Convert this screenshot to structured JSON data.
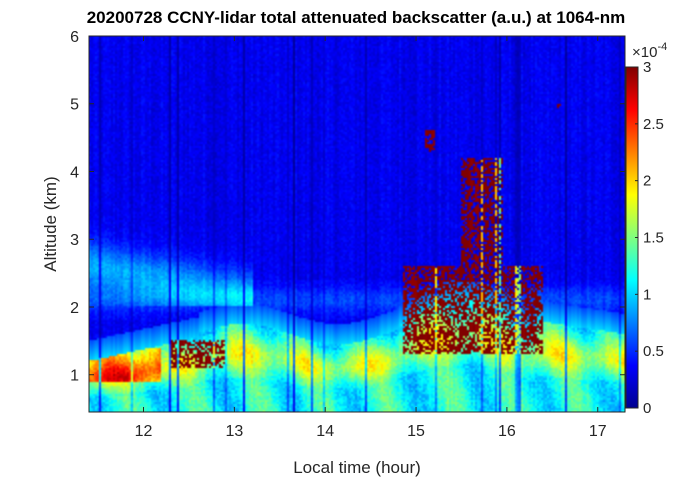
{
  "chart_data": {
    "type": "heatmap",
    "title": "20200728 CCNY-lidar total attenuated backscatter (a.u.) at 1064-nm",
    "xlabel": "Local time (hour)",
    "ylabel": "Altitude (km)",
    "xlim": [
      11.4,
      17.3
    ],
    "ylim": [
      0.45,
      6
    ],
    "x_ticks": [
      12,
      13,
      14,
      15,
      16,
      17
    ],
    "x_tick_labels": [
      "12",
      "13",
      "14",
      "15",
      "16",
      "17"
    ],
    "y_ticks": [
      1,
      2,
      3,
      4,
      5,
      6
    ],
    "y_tick_labels": [
      "1",
      "2",
      "3",
      "4",
      "5",
      "6"
    ],
    "colorbar": {
      "colormap": "jet",
      "range": [
        0,
        3
      ],
      "ticks": [
        0,
        0.5,
        1,
        1.5,
        2,
        2.5,
        3
      ],
      "tick_labels": [
        "0",
        "0.5",
        "1",
        "1.5",
        "2",
        "2.5",
        "3"
      ],
      "exponent_label": "×10",
      "exponent_power": "-4"
    },
    "features": [
      {
        "type": "aerosol_layer",
        "time_range": [
          11.4,
          17.3
        ],
        "altitude_range": [
          0.45,
          1.9
        ],
        "value_approx": 1.3
      },
      {
        "type": "residual_layer",
        "time_range": [
          11.4,
          13.0
        ],
        "altitude_range": [
          2.0,
          3.3
        ],
        "value_approx": 0.9
      },
      {
        "type": "cloud",
        "time_range": [
          12.3,
          12.9
        ],
        "altitude_range": [
          1.1,
          1.5
        ],
        "value_approx": 3.0
      },
      {
        "type": "cloud",
        "time_range": [
          15.5,
          15.95
        ],
        "altitude_range": [
          2.2,
          4.2
        ],
        "value_approx": 3.0
      },
      {
        "type": "cloud",
        "time_range": [
          15.1,
          15.2
        ],
        "altitude_range": [
          4.3,
          4.6
        ],
        "value_approx": 3.0
      },
      {
        "type": "cloud",
        "time_range": [
          14.85,
          16.4
        ],
        "altitude_range": [
          1.3,
          2.6
        ],
        "value_approx": 3.0
      },
      {
        "type": "cloud",
        "time_range": [
          16.55,
          16.6
        ],
        "altitude_range": [
          4.95,
          5.0
        ],
        "value_approx": 3.0
      }
    ]
  }
}
